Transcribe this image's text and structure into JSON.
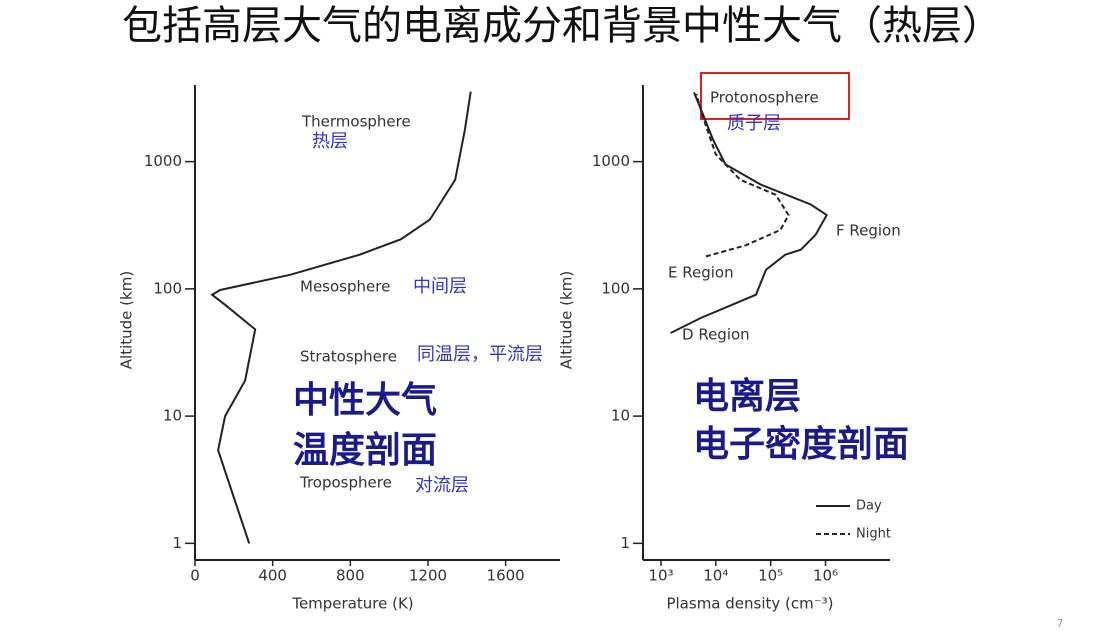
{
  "title": "包括高层大气的电离成分和背景中性大气（热层）",
  "page_number": "7",
  "chart_data": [
    {
      "type": "line",
      "xlabel": "Temperature (K)",
      "ylabel": "Altitude (km)",
      "xlim": [
        0,
        1880
      ],
      "ylim": [
        0.74,
        4000
      ],
      "log_y": true,
      "xticks": [
        0,
        400,
        800,
        1200,
        1600
      ],
      "yticks": [
        1,
        10,
        100,
        1000
      ],
      "series": [
        {
          "color": "#222222",
          "linestyle": "solid",
          "x": [
            279,
            119,
            155,
            258,
            310,
            155,
            88,
            130,
            490,
            850,
            1060,
            1210,
            1340,
            1390,
            1420
          ],
          "values": [
            1,
            5.4,
            10,
            19,
            48,
            75,
            90,
            98,
            129,
            186,
            245,
            350,
            720,
            1780,
            3550
          ]
        }
      ],
      "annotations": [
        "Thermosphere",
        "热层",
        "Mesosphere",
        "中间层",
        "Stratosphere",
        "同温层，平流层",
        "Troposphere",
        "对流层",
        "中性大气",
        "温度剖面"
      ]
    },
    {
      "type": "line",
      "xlabel": "Plasma density (cm⁻³)",
      "ylabel": "Altitude (km)",
      "xlim": [
        470,
        15000000
      ],
      "ylim": [
        0.74,
        4000
      ],
      "log_x": true,
      "log_y": true,
      "xticks": [
        {
          "value": 1000,
          "label": "10³"
        },
        {
          "value": 10000,
          "label": "10⁴"
        },
        {
          "value": 100000,
          "label": "10⁵"
        },
        {
          "value": 1000000,
          "label": "10⁶"
        }
      ],
      "yticks": [
        1,
        10,
        100,
        1000
      ],
      "legend": "lower right",
      "series": [
        {
          "name": "Day",
          "color": "#222222",
          "linestyle": "solid",
          "x": [
            1500,
            5300,
            54000,
            82000,
            186000,
            355000,
            660000,
            1050000,
            540000,
            66000,
            15000,
            8900,
            5300,
            4000
          ],
          "values": [
            45,
            59,
            90,
            141,
            186,
            203,
            266,
            380,
            460,
            660,
            950,
            1490,
            2600,
            3500
          ]
        },
        {
          "name": "Night",
          "color": "#222222",
          "linestyle": "dashed",
          "x": [
            6600,
            35000,
            150000,
            212000,
            123000,
            28000,
            10000,
            6000,
            4400
          ],
          "values": [
            180,
            220,
            290,
            380,
            550,
            720,
            1140,
            2150,
            3400
          ]
        }
      ],
      "annotations": [
        "Protonosphere",
        "质子层",
        "F Region",
        "E Region",
        "D Region",
        "电离层",
        "电子密度剖面"
      ]
    }
  ]
}
